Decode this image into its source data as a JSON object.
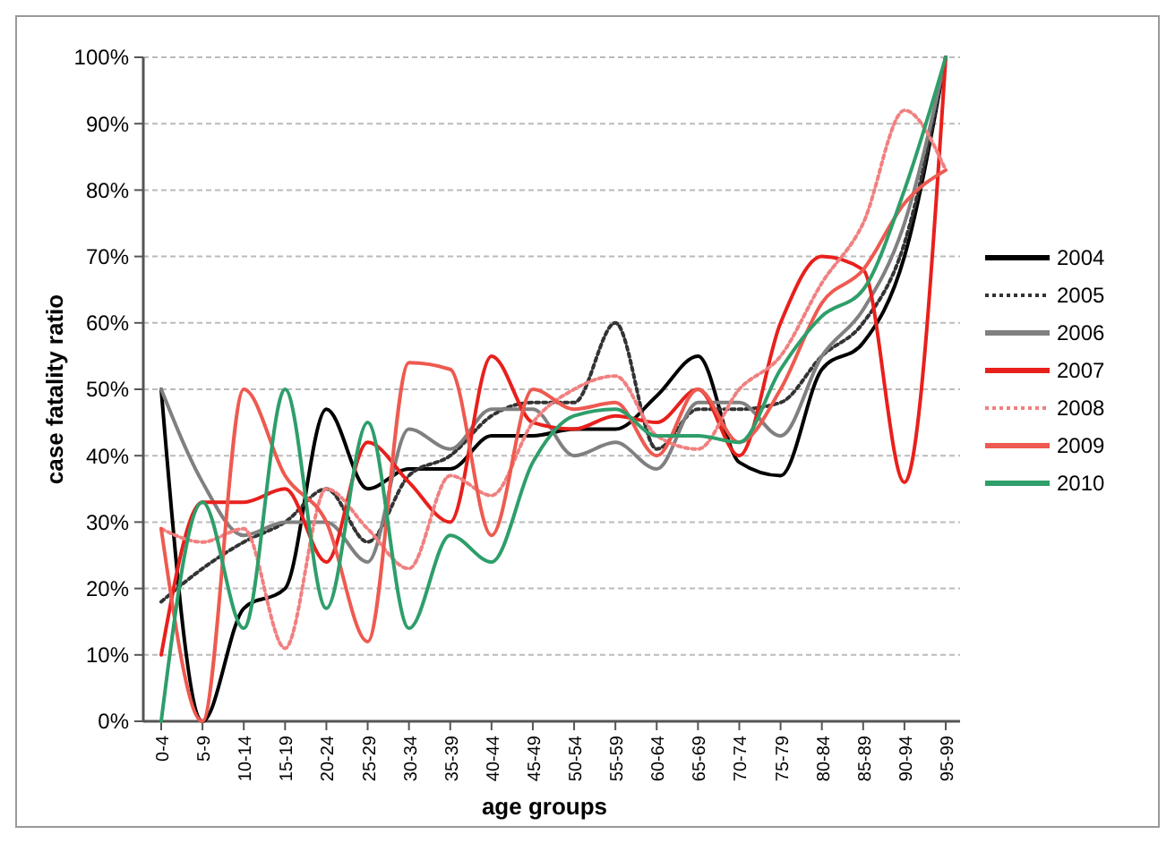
{
  "chart_data": {
    "type": "line",
    "xlabel": "age groups",
    "ylabel": "case fatality ratio",
    "categories": [
      "0-4",
      "5-9",
      "10-14",
      "15-19",
      "20-24",
      "25-29",
      "30-34",
      "35-39",
      "40-44",
      "45-49",
      "50-54",
      "55-59",
      "60-64",
      "65-69",
      "70-74",
      "75-79",
      "80-84",
      "85-89",
      "90-94",
      "95-99"
    ],
    "series": [
      {
        "name": "2004",
        "color": "#000000",
        "values": [
          50,
          0,
          17,
          20,
          47,
          35,
          38,
          38,
          43,
          43,
          44,
          44,
          49,
          55,
          39,
          37,
          53,
          57,
          70,
          100
        ]
      },
      {
        "name": "2005",
        "color": "#333333",
        "line_style": "dotted",
        "values": [
          18,
          23,
          27,
          30,
          35,
          27,
          37,
          40,
          46,
          48,
          48,
          60,
          41,
          47,
          47,
          48,
          55,
          60,
          72,
          100
        ]
      },
      {
        "name": "2006",
        "color": "#808080",
        "values": [
          50,
          36,
          28,
          30,
          30,
          24,
          44,
          41,
          47,
          47,
          40,
          42,
          38,
          48,
          48,
          43,
          55,
          62,
          75,
          100
        ]
      },
      {
        "name": "2007",
        "color": "#e8201c",
        "values": [
          10,
          33,
          33,
          35,
          24,
          42,
          36,
          30,
          55,
          45,
          44,
          46,
          45,
          50,
          40,
          60,
          70,
          68,
          36,
          100
        ]
      },
      {
        "name": "2008",
        "color": "#f08080",
        "line_style": "dotted",
        "values": [
          29,
          27,
          29,
          11,
          35,
          29,
          23,
          37,
          34,
          45,
          50,
          52,
          43,
          41,
          50,
          55,
          66,
          75,
          92,
          83
        ]
      },
      {
        "name": "2009",
        "color": "#ee5a50",
        "values": [
          29,
          0,
          50,
          37,
          30,
          12,
          54,
          53,
          28,
          50,
          47,
          48,
          40,
          50,
          42,
          50,
          63,
          68,
          78,
          83
        ]
      },
      {
        "name": "2010",
        "color": "#2e9e6a",
        "values": [
          0,
          33,
          14,
          50,
          17,
          45,
          14,
          28,
          24,
          39,
          46,
          47,
          43,
          43,
          42,
          53,
          61,
          65,
          80,
          100
        ]
      }
    ],
    "ylim": [
      0,
      100
    ],
    "yticks": [
      {
        "value": 0,
        "label": "0%"
      },
      {
        "value": 10,
        "label": "10%"
      },
      {
        "value": 20,
        "label": "20%"
      },
      {
        "value": 30,
        "label": "30%"
      },
      {
        "value": 40,
        "label": "40%"
      },
      {
        "value": 50,
        "label": "50%"
      },
      {
        "value": 60,
        "label": "60%"
      },
      {
        "value": 70,
        "label": "70%"
      },
      {
        "value": 80,
        "label": "80%"
      },
      {
        "value": 90,
        "label": "90%"
      },
      {
        "value": 100,
        "label": "100%"
      }
    ],
    "grid": "y",
    "legend": "right",
    "marker": "none"
  }
}
